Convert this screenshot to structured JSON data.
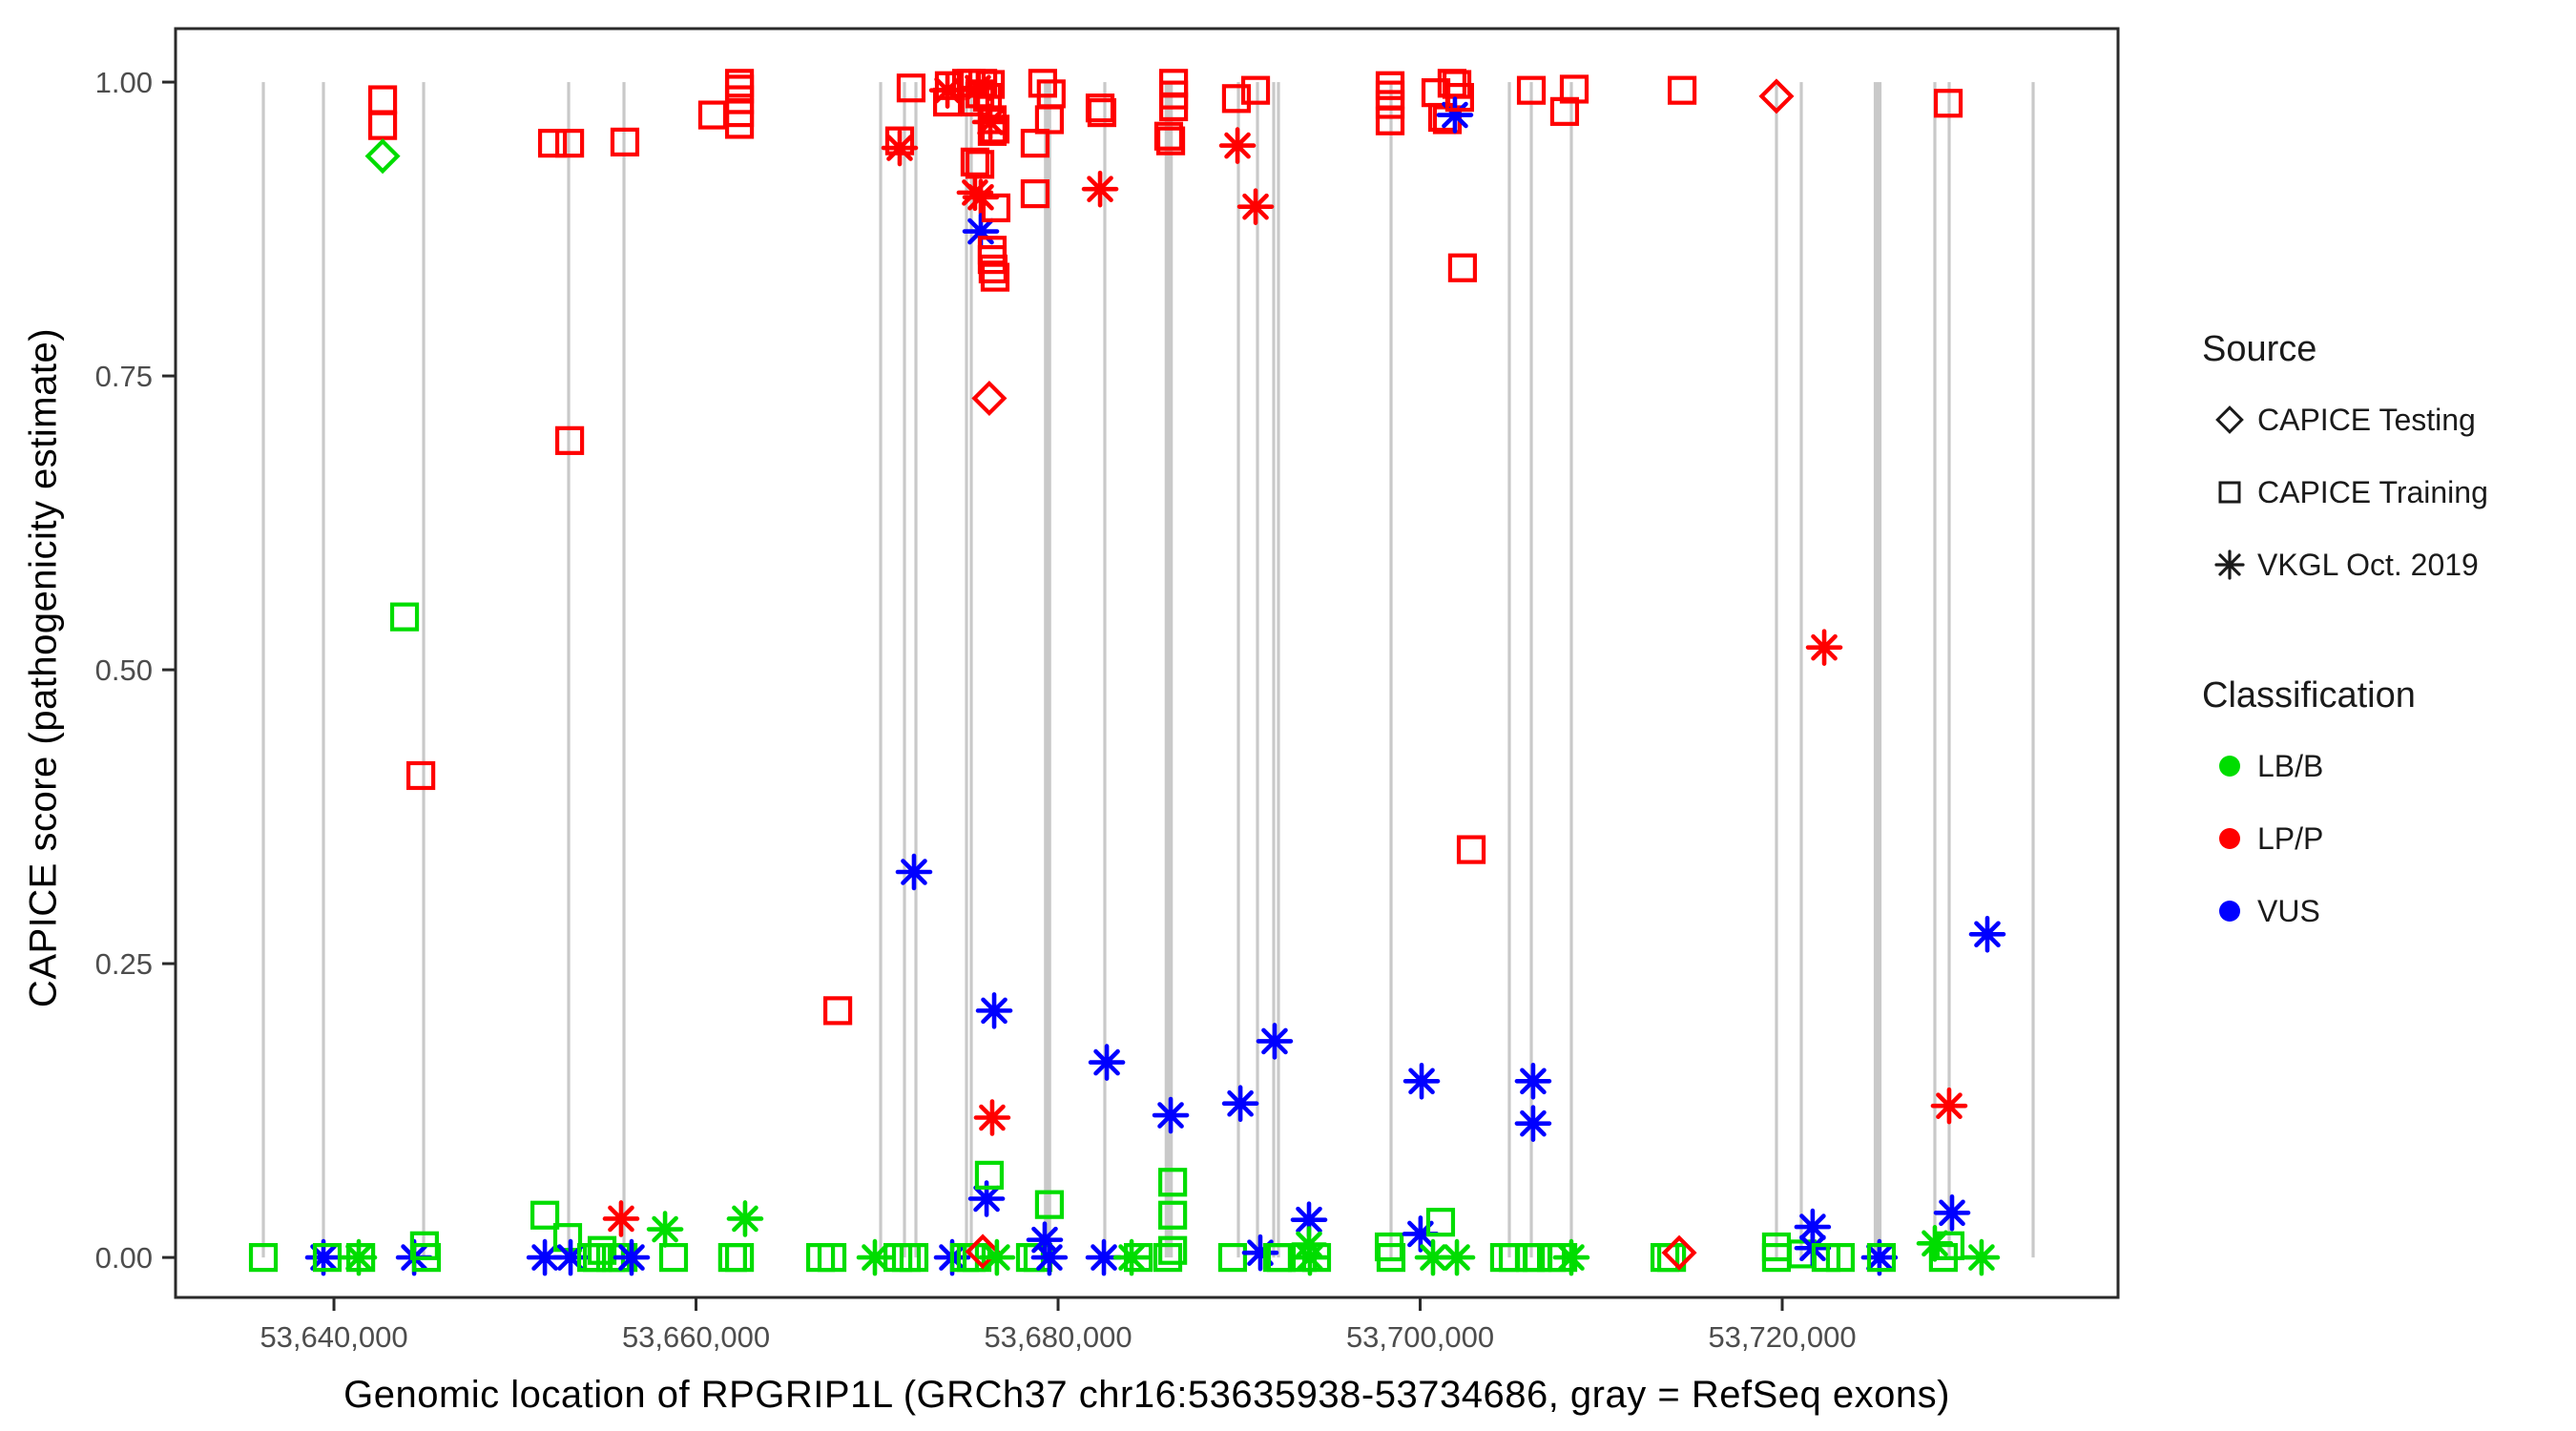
{
  "legend": {
    "source": {
      "title": "Source",
      "items": [
        {
          "label": "CAPICE Testing",
          "glyph": "diamond-icon"
        },
        {
          "label": "CAPICE Training",
          "glyph": "square-icon"
        },
        {
          "label": "VKGL Oct. 2019",
          "glyph": "asterisk-icon"
        }
      ]
    },
    "classification": {
      "title": "Classification",
      "items": [
        {
          "label": "LB/B",
          "color": "#00DD00"
        },
        {
          "label": "LP/P",
          "color": "#FF0000"
        },
        {
          "label": "VUS",
          "color": "#0000FF"
        }
      ]
    }
  },
  "chart_data": {
    "type": "scatter",
    "title": "",
    "xlabel": "Genomic location of RPGRIP1L (GRCh37 chr16:53635938-53734686, gray = RefSeq exons)",
    "ylabel": "CAPICE score (pathogenicity estimate)",
    "gene_region": "GRCh37 chr16:53635938-53734686",
    "legend_position": "right",
    "grid": false,
    "x_axis": {
      "min": 53631250,
      "max": 53738550,
      "ticks": [
        {
          "v": 53640000,
          "label": "53,640,000"
        },
        {
          "v": 53660000,
          "label": "53,660,000"
        },
        {
          "v": 53680000,
          "label": "53,680,000"
        },
        {
          "v": 53700000,
          "label": "53,700,000"
        },
        {
          "v": 53720000,
          "label": "53,720,000"
        }
      ]
    },
    "y_axis": {
      "min": -0.034,
      "max": 1.0455,
      "ticks": [
        {
          "v": 1.0,
          "label": "1.00"
        },
        {
          "v": 0.75,
          "label": "0.75"
        },
        {
          "v": 0.5,
          "label": "0.50"
        },
        {
          "v": 0.25,
          "label": "0.25"
        },
        {
          "v": 0.0,
          "label": "0.00"
        }
      ]
    },
    "colors": {
      "LB": "#00DD00",
      "LP": "#FF0000",
      "VUS": "#0000FF",
      "exon": "#C9C9C9",
      "axis": "#2A2A2A",
      "tick_text": "#4D4D4D"
    },
    "shape_meaning": {
      "dia": "CAPICE Testing",
      "sq": "CAPICE Training",
      "ast": "VKGL Oct. 2019"
    },
    "class_meaning": {
      "LB": "LB/B",
      "LP": "LP/P",
      "VUS": "VUS"
    },
    "exons_bp": [
      [
        53636100,
        160
      ],
      [
        53639420,
        160
      ],
      [
        53644954,
        160
      ],
      [
        53652964,
        160
      ],
      [
        53656021,
        160
      ],
      [
        53670198,
        160
      ],
      [
        53671515,
        160
      ],
      [
        53672147,
        160
      ],
      [
        53674940,
        130
      ],
      [
        53675204,
        130
      ],
      [
        53679419,
        400
      ],
      [
        53682581,
        160
      ],
      [
        53686112,
        450
      ],
      [
        53689960,
        160
      ],
      [
        53691014,
        160
      ],
      [
        53691910,
        130
      ],
      [
        53692173,
        130
      ],
      [
        53698392,
        160
      ],
      [
        53704926,
        160
      ],
      [
        53706139,
        160
      ],
      [
        53708352,
        160
      ],
      [
        53719682,
        160
      ],
      [
        53721053,
        160
      ],
      [
        53725269,
        430
      ],
      [
        53728431,
        160
      ],
      [
        53729222,
        160
      ],
      [
        53733860,
        160
      ]
    ],
    "points": [
      [
        53636100,
        0,
        "sq",
        "LB"
      ],
      [
        53639420,
        0,
        "ast",
        "VUS"
      ],
      [
        53639630,
        0,
        "sq",
        "LB"
      ],
      [
        53641370,
        0,
        "ast",
        "LB"
      ],
      [
        53641480,
        0,
        "sq",
        "LB"
      ],
      [
        53642690,
        0.985,
        "sq",
        "LP"
      ],
      [
        53642690,
        0.963,
        "sq",
        "LP"
      ],
      [
        53642690,
        0.937,
        "dia",
        "LB"
      ],
      [
        53643900,
        0.545,
        "sq",
        "LB"
      ],
      [
        53644430,
        0,
        "ast",
        "VUS"
      ],
      [
        53644800,
        0.41,
        "sq",
        "LP"
      ],
      [
        53645000,
        0.01,
        "sq",
        "LB"
      ],
      [
        53645110,
        0,
        "sq",
        "LB"
      ],
      [
        53651650,
        0.036,
        "sq",
        "LB"
      ],
      [
        53651650,
        0,
        "ast",
        "VUS"
      ],
      [
        53652070,
        0.948,
        "sq",
        "LP"
      ],
      [
        53652910,
        0.017,
        "sq",
        "LB"
      ],
      [
        53653020,
        0.948,
        "sq",
        "LP"
      ],
      [
        53653020,
        0.695,
        "sq",
        "LP"
      ],
      [
        53653070,
        0,
        "ast",
        "VUS"
      ],
      [
        53654230,
        0,
        "sq",
        "LB"
      ],
      [
        53654550,
        0,
        "sq",
        "LB"
      ],
      [
        53654810,
        0.006,
        "sq",
        "LB"
      ],
      [
        53655280,
        0,
        "sq",
        "LB"
      ],
      [
        53655600,
        0,
        "sq",
        "LB"
      ],
      [
        53655860,
        0.033,
        "ast",
        "LP"
      ],
      [
        53655970,
        0,
        "sq",
        "LB"
      ],
      [
        53656070,
        0.949,
        "sq",
        "LP"
      ],
      [
        53656440,
        0,
        "ast",
        "VUS"
      ],
      [
        53658290,
        0.024,
        "ast",
        "LB"
      ],
      [
        53658760,
        0,
        "sq",
        "LB"
      ],
      [
        53660920,
        0.972,
        "sq",
        "LP"
      ],
      [
        53662020,
        0,
        "sq",
        "LB"
      ],
      [
        53662400,
        0,
        "sq",
        "LB"
      ],
      [
        53662710,
        0.033,
        "ast",
        "LB"
      ],
      [
        53662400,
        0.999,
        "sq",
        "LP"
      ],
      [
        53662400,
        0.994,
        "sq",
        "LP"
      ],
      [
        53662400,
        0.985,
        "sq",
        "LP"
      ],
      [
        53662400,
        0.974,
        "sq",
        "LP"
      ],
      [
        53662400,
        0.964,
        "sq",
        "LP"
      ],
      [
        53666880,
        0,
        "sq",
        "LB"
      ],
      [
        53667510,
        0,
        "sq",
        "LB"
      ],
      [
        53667830,
        0.21,
        "sq",
        "LP"
      ],
      [
        53669880,
        0,
        "ast",
        "LB"
      ],
      [
        53671150,
        0,
        "sq",
        "LB"
      ],
      [
        53671250,
        0.95,
        "sq",
        "LP"
      ],
      [
        53671250,
        0.944,
        "ast",
        "LP"
      ],
      [
        53671620,
        0,
        "sq",
        "LB"
      ],
      [
        53671880,
        0.995,
        "sq",
        "LP"
      ],
      [
        53672040,
        0,
        "sq",
        "LB"
      ],
      [
        53672040,
        0.328,
        "ast",
        "VUS"
      ],
      [
        53673890,
        0.993,
        "ast",
        "LP"
      ],
      [
        53673990,
        0.997,
        "sq",
        "LP"
      ],
      [
        53673890,
        0.983,
        "sq",
        "LP"
      ],
      [
        53674150,
        0,
        "ast",
        "VUS"
      ],
      [
        53674830,
        0,
        "sq",
        "LB"
      ],
      [
        53674940,
        0.999,
        "sq",
        "LP"
      ],
      [
        53675200,
        0,
        "sq",
        "LB"
      ],
      [
        53675200,
        0.999,
        "sq",
        "LP"
      ],
      [
        53675410,
        0.983,
        "sq",
        "LP"
      ],
      [
        53675410,
        0.932,
        "sq",
        "LP"
      ],
      [
        53675410,
        0.906,
        "ast",
        "LP"
      ],
      [
        53675520,
        0,
        "sq",
        "LB"
      ],
      [
        53675570,
        0.995,
        "ast",
        "LP"
      ],
      [
        53675680,
        0.99,
        "sq",
        "LP"
      ],
      [
        53675680,
        0.93,
        "sq",
        "LP"
      ],
      [
        53675730,
        0.902,
        "ast",
        "LP"
      ],
      [
        53675730,
        0.873,
        "ast",
        "VUS"
      ],
      [
        53675840,
        0.999,
        "sq",
        "LP"
      ],
      [
        53675840,
        0.005,
        "dia",
        "LP"
      ],
      [
        53676050,
        0.05,
        "ast",
        "VUS"
      ],
      [
        53676100,
        0.987,
        "sq",
        "LP"
      ],
      [
        53676200,
        0.731,
        "dia",
        "LP"
      ],
      [
        53676200,
        0.07,
        "sq",
        "LB"
      ],
      [
        53676260,
        0.998,
        "sq",
        "LP"
      ],
      [
        53676260,
        0.966,
        "ast",
        "LP"
      ],
      [
        53676360,
        0.968,
        "sq",
        "LP"
      ],
      [
        53676360,
        0.958,
        "sq",
        "LP"
      ],
      [
        53676360,
        0.857,
        "sq",
        "LP"
      ],
      [
        53676360,
        0.849,
        "sq",
        "LP"
      ],
      [
        53676410,
        0.841,
        "sq",
        "LP"
      ],
      [
        53676470,
        0.21,
        "ast",
        "VUS"
      ],
      [
        53676360,
        0.119,
        "ast",
        "LP"
      ],
      [
        53676520,
        0.96,
        "sq",
        "LP"
      ],
      [
        53676520,
        0.834,
        "sq",
        "LP"
      ],
      [
        53676570,
        0.893,
        "sq",
        "LP"
      ],
      [
        53676620,
        0,
        "ast",
        "LB"
      ],
      [
        53678470,
        0,
        "sq",
        "LB"
      ],
      [
        53678730,
        0.948,
        "sq",
        "LP"
      ],
      [
        53678730,
        0.905,
        "sq",
        "LP"
      ],
      [
        53678890,
        0,
        "sq",
        "LB"
      ],
      [
        53679150,
        0.999,
        "sq",
        "LP"
      ],
      [
        53679260,
        0.015,
        "ast",
        "VUS"
      ],
      [
        53679520,
        0,
        "ast",
        "VUS"
      ],
      [
        53679520,
        0.045,
        "sq",
        "LB"
      ],
      [
        53679520,
        0.968,
        "sq",
        "LP"
      ],
      [
        53679620,
        0.99,
        "sq",
        "LP"
      ],
      [
        53682320,
        0.978,
        "sq",
        "LP"
      ],
      [
        53682420,
        0.974,
        "sq",
        "LP"
      ],
      [
        53682320,
        0.909,
        "ast",
        "LP"
      ],
      [
        53682530,
        0,
        "ast",
        "VUS"
      ],
      [
        53682690,
        0.166,
        "ast",
        "VUS"
      ],
      [
        53684060,
        0,
        "ast",
        "LB"
      ],
      [
        53684430,
        0,
        "sq",
        "LB"
      ],
      [
        53686060,
        0,
        "sq",
        "LB"
      ],
      [
        53686110,
        0.954,
        "sq",
        "LP"
      ],
      [
        53686220,
        0.95,
        "sq",
        "LP"
      ],
      [
        53686220,
        0.121,
        "ast",
        "VUS"
      ],
      [
        53686330,
        0.064,
        "sq",
        "LB"
      ],
      [
        53686330,
        0.036,
        "sq",
        "LB"
      ],
      [
        53686330,
        0.006,
        "sq",
        "LB"
      ],
      [
        53686380,
        0.999,
        "sq",
        "LP"
      ],
      [
        53686380,
        0.989,
        "sq",
        "LP"
      ],
      [
        53686380,
        0.979,
        "sq",
        "LP"
      ],
      [
        53689640,
        0,
        "sq",
        "LB"
      ],
      [
        53689850,
        0.986,
        "sq",
        "LP"
      ],
      [
        53689910,
        0.946,
        "ast",
        "LP"
      ],
      [
        53690070,
        0.131,
        "ast",
        "VUS"
      ],
      [
        53690910,
        0.993,
        "sq",
        "LP"
      ],
      [
        53690910,
        0.894,
        "ast",
        "LP"
      ],
      [
        53691170,
        0.004,
        "ast",
        "VUS"
      ],
      [
        53691960,
        0.184,
        "ast",
        "VUS"
      ],
      [
        53692120,
        0,
        "sq",
        "LB"
      ],
      [
        53692330,
        0,
        "sq",
        "LB"
      ],
      [
        53693860,
        0.032,
        "ast",
        "VUS"
      ],
      [
        53693860,
        0.011,
        "ast",
        "LB"
      ],
      [
        53693490,
        0,
        "sq",
        "LB"
      ],
      [
        53693910,
        0,
        "ast",
        "LB"
      ],
      [
        53694280,
        0,
        "sq",
        "LB"
      ],
      [
        53698340,
        0.997,
        "sq",
        "LP"
      ],
      [
        53698340,
        0.989,
        "sq",
        "LP"
      ],
      [
        53698340,
        0.981,
        "sq",
        "LP"
      ],
      [
        53698340,
        0.967,
        "sq",
        "LP"
      ],
      [
        53698290,
        0.009,
        "sq",
        "LB"
      ],
      [
        53698390,
        0,
        "sq",
        "LB"
      ],
      [
        53700020,
        0.02,
        "ast",
        "VUS"
      ],
      [
        53700080,
        0.15,
        "ast",
        "VUS"
      ],
      [
        53700710,
        0,
        "ast",
        "LB"
      ],
      [
        53700870,
        0.991,
        "sq",
        "LP"
      ],
      [
        53701130,
        0.03,
        "sq",
        "LB"
      ],
      [
        53701240,
        0.97,
        "sq",
        "LP"
      ],
      [
        53701500,
        0.968,
        "sq",
        "LP"
      ],
      [
        53701760,
        0.999,
        "sq",
        "LP"
      ],
      [
        53702030,
        0.998,
        "sq",
        "LP"
      ],
      [
        53701920,
        0.972,
        "ast",
        "VUS"
      ],
      [
        53702180,
        0.987,
        "sq",
        "LP"
      ],
      [
        53702340,
        0.842,
        "sq",
        "LP"
      ],
      [
        53702820,
        0.347,
        "sq",
        "LP"
      ],
      [
        53702030,
        0,
        "ast",
        "LB"
      ],
      [
        53704660,
        0,
        "sq",
        "LB"
      ],
      [
        53705140,
        0,
        "sq",
        "LB"
      ],
      [
        53706090,
        0,
        "sq",
        "LB"
      ],
      [
        53706460,
        0,
        "sq",
        "LB"
      ],
      [
        53707250,
        0,
        "sq",
        "LB"
      ],
      [
        53707880,
        0,
        "sq",
        "LB"
      ],
      [
        53708350,
        0,
        "ast",
        "LB"
      ],
      [
        53706240,
        0.15,
        "ast",
        "VUS"
      ],
      [
        53706240,
        0.114,
        "ast",
        "VUS"
      ],
      [
        53706140,
        0.993,
        "sq",
        "LP"
      ],
      [
        53708510,
        0.994,
        "sq",
        "LP"
      ],
      [
        53707980,
        0.975,
        "sq",
        "LP"
      ],
      [
        53713520,
        0,
        "sq",
        "LB"
      ],
      [
        53713890,
        0,
        "sq",
        "LB"
      ],
      [
        53714310,
        0.004,
        "dia",
        "LP"
      ],
      [
        53714470,
        0.993,
        "sq",
        "LP"
      ],
      [
        53719680,
        0.988,
        "dia",
        "LP"
      ],
      [
        53719680,
        0.009,
        "sq",
        "LB"
      ],
      [
        53719680,
        0,
        "sq",
        "LB"
      ],
      [
        53721100,
        0.003,
        "sq",
        "LB"
      ],
      [
        53721680,
        0.026,
        "ast",
        "VUS"
      ],
      [
        53721680,
        0.008,
        "ast",
        "VUS"
      ],
      [
        53722420,
        0,
        "sq",
        "LB"
      ],
      [
        53723210,
        0,
        "sq",
        "LB"
      ],
      [
        53722320,
        0.519,
        "ast",
        "LP"
      ],
      [
        53725370,
        0,
        "ast",
        "VUS"
      ],
      [
        53725480,
        0,
        "sq",
        "LB"
      ],
      [
        53729170,
        0.982,
        "sq",
        "LP"
      ],
      [
        53728430,
        0.012,
        "ast",
        "LB"
      ],
      [
        53728900,
        0,
        "sq",
        "LB"
      ],
      [
        53729380,
        0.038,
        "ast",
        "VUS"
      ],
      [
        53729270,
        0.01,
        "sq",
        "LB"
      ],
      [
        53729220,
        0.129,
        "ast",
        "LP"
      ],
      [
        53731330,
        0.275,
        "ast",
        "VUS"
      ],
      [
        53731010,
        0,
        "ast",
        "LB"
      ]
    ]
  }
}
